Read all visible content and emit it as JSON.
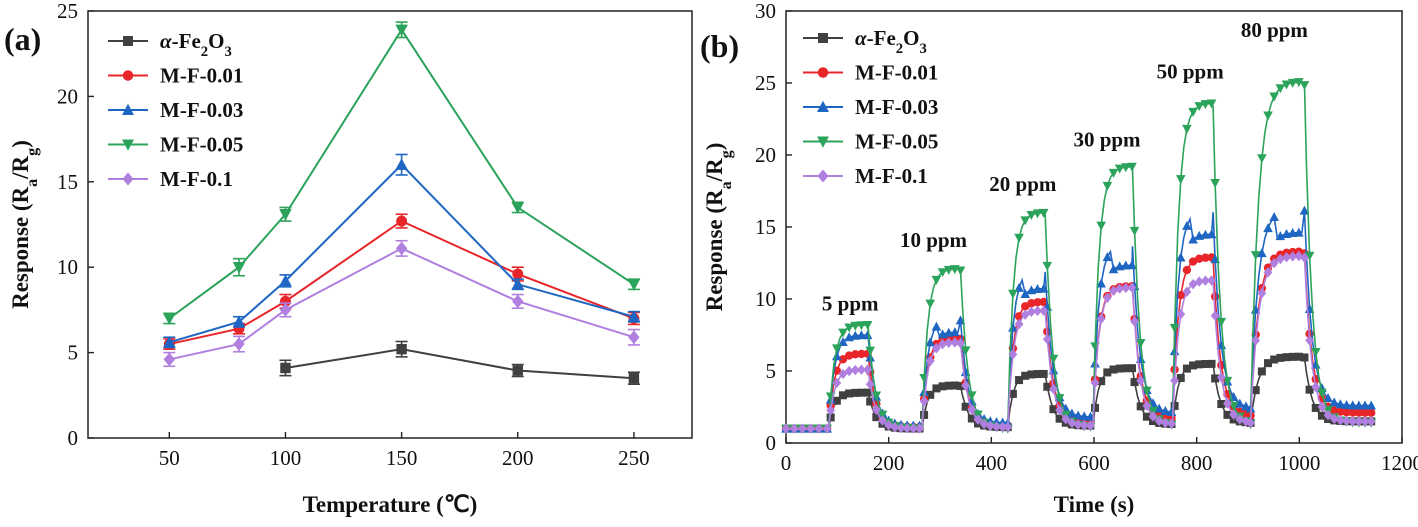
{
  "chart_data": [
    {
      "type": "line",
      "panel_label": "(a)",
      "xlabel": "Temperature (℃)",
      "ylabel_parts": [
        "Response (R",
        "a",
        "/R",
        "g",
        ")"
      ],
      "xlim": [
        15,
        275
      ],
      "ylim": [
        0,
        25
      ],
      "xticks": [
        50,
        100,
        150,
        200,
        250
      ],
      "yticks": [
        0,
        5,
        10,
        15,
        20,
        25
      ],
      "grid": false,
      "legend_position": "top-left",
      "series": [
        {
          "name": "α-Fe2O3",
          "label_parts": [
            "α",
            "-Fe",
            "2",
            "O",
            "3"
          ],
          "color": "#404040",
          "marker": "square",
          "x": [
            100,
            150,
            200,
            250
          ],
          "y": [
            4.1,
            5.2,
            3.95,
            3.5
          ],
          "err": [
            0.45,
            0.45,
            0.35,
            0.35
          ]
        },
        {
          "name": "M-F-0.01",
          "color": "#e8262a",
          "marker": "circle",
          "x": [
            50,
            80,
            100,
            150,
            200,
            250
          ],
          "y": [
            5.5,
            6.4,
            8.0,
            12.7,
            9.6,
            7.0
          ],
          "err": [
            0.3,
            0.3,
            0.4,
            0.4,
            0.4,
            0.35
          ]
        },
        {
          "name": "M-F-0.03",
          "color": "#1f66c2",
          "marker": "triangle-up",
          "x": [
            50,
            80,
            100,
            150,
            200,
            250
          ],
          "y": [
            5.6,
            6.8,
            9.2,
            16.0,
            9.0,
            7.1
          ],
          "err": [
            0.3,
            0.3,
            0.35,
            0.6,
            0.3,
            0.3
          ]
        },
        {
          "name": "M-F-0.05",
          "color": "#2ca35a",
          "marker": "triangle-down",
          "x": [
            50,
            80,
            100,
            150,
            200,
            250
          ],
          "y": [
            7.0,
            10.0,
            13.1,
            23.9,
            13.5,
            9.0
          ],
          "err": [
            0.3,
            0.5,
            0.4,
            0.45,
            0.3,
            0.3
          ]
        },
        {
          "name": "M-F-0.1",
          "color": "#b07fe0",
          "marker": "diamond",
          "x": [
            50,
            80,
            100,
            150,
            200,
            250
          ],
          "y": [
            4.6,
            5.5,
            7.5,
            11.1,
            8.0,
            5.9
          ],
          "err": [
            0.4,
            0.45,
            0.4,
            0.45,
            0.4,
            0.45
          ]
        }
      ]
    },
    {
      "type": "line",
      "panel_label": "(b)",
      "xlabel": "Time (s)",
      "ylabel_parts": [
        "Response (R",
        "a",
        "/R",
        "g",
        ")"
      ],
      "xlim": [
        0,
        1200
      ],
      "ylim": [
        0,
        30
      ],
      "xticks": [
        0,
        200,
        400,
        600,
        800,
        1000,
        1200
      ],
      "yticks": [
        0,
        5,
        10,
        15,
        20,
        25,
        30
      ],
      "grid": false,
      "legend_position": "top-left",
      "baseline": {
        "x_end": 1145
      },
      "pulses": [
        {
          "label": "5 ppm",
          "label_x": 70,
          "label_y": 9.2,
          "on": 83,
          "off": 160,
          "peaks": {
            "fe2o3": 3.5,
            "mf001": 6.2,
            "mf003": 7.5,
            "mf005": 8.2,
            "mf01": 5.1
          }
        },
        {
          "label": "10 ppm",
          "label_x": 222,
          "label_y": 13.6,
          "on": 265,
          "off": 340,
          "peaks": {
            "fe2o3": 4.0,
            "mf001": 7.3,
            "mf003": 8.6,
            "mf005": 12.1,
            "mf01": 7.0
          }
        },
        {
          "label": "20 ppm",
          "label_x": 396,
          "label_y": 17.5,
          "on": 432,
          "off": 505,
          "peaks": {
            "fe2o3": 4.8,
            "mf001": 9.8,
            "mf003": 12.0,
            "mf005": 16.0,
            "mf01": 9.2
          }
        },
        {
          "label": "30 ppm",
          "label_x": 560,
          "label_y": 20.6,
          "on": 598,
          "off": 675,
          "peaks": {
            "fe2o3": 5.2,
            "mf001": 10.9,
            "mf003": 13.8,
            "mf005": 19.2,
            "mf01": 10.8
          }
        },
        {
          "label": "50 ppm",
          "label_x": 722,
          "label_y": 25.3,
          "on": 753,
          "off": 832,
          "peaks": {
            "fe2o3": 5.5,
            "mf001": 12.9,
            "mf003": 16.2,
            "mf005": 23.6,
            "mf01": 11.3
          }
        },
        {
          "label": "80 ppm",
          "label_x": 886,
          "label_y": 28.2,
          "on": 905,
          "off": 1010,
          "peaks": {
            "fe2o3": 6.0,
            "mf001": 13.3,
            "mf003": 16.3,
            "mf005": 25.1,
            "mf01": 13.0
          }
        }
      ],
      "series": [
        {
          "key": "fe2o3",
          "name": "α-Fe2O3",
          "label_parts": [
            "α",
            "-Fe",
            "2",
            "O",
            "3"
          ],
          "color": "#404040",
          "marker": "square",
          "base": [
            1.0,
            1.0,
            1.1,
            1.2,
            1.3,
            1.4,
            1.5
          ]
        },
        {
          "key": "mf001",
          "name": "M-F-0.01",
          "color": "#e8262a",
          "marker": "circle",
          "base": [
            1.0,
            1.1,
            1.2,
            1.5,
            1.7,
            1.9,
            2.1
          ]
        },
        {
          "key": "mf003",
          "name": "M-F-0.03",
          "color": "#1f66c2",
          "marker": "triangle-up",
          "base": [
            1.0,
            1.2,
            1.4,
            1.8,
            2.1,
            2.4,
            2.6
          ]
        },
        {
          "key": "mf005",
          "name": "M-F-0.05",
          "color": "#2ca35a",
          "marker": "triangle-down",
          "base": [
            1.0,
            1.0,
            1.0,
            1.1,
            1.2,
            1.3,
            1.4
          ]
        },
        {
          "key": "mf01",
          "name": "M-F-0.1",
          "color": "#b07fe0",
          "marker": "diamond",
          "base": [
            1.0,
            1.0,
            1.1,
            1.2,
            1.3,
            1.4,
            1.5
          ]
        }
      ]
    }
  ]
}
